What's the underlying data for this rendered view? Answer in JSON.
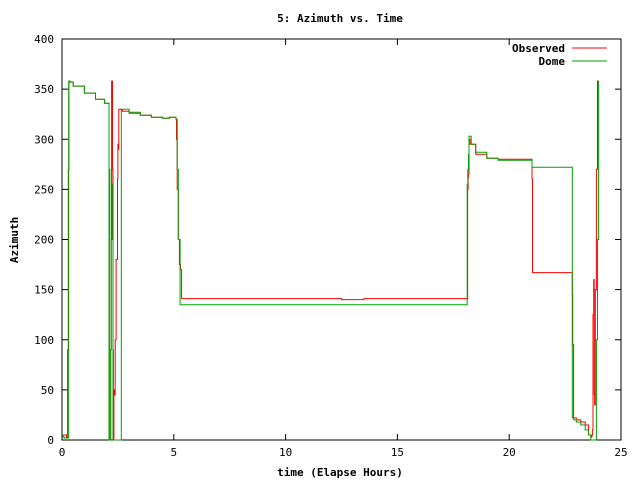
{
  "chart_data": {
    "type": "line",
    "title": "5: Azimuth vs. Time",
    "xlabel": "time (Elapse Hours)",
    "ylabel": "Azimuth",
    "xlim": [
      0,
      25
    ],
    "ylim": [
      0,
      400
    ],
    "xticks": [
      0,
      5,
      10,
      15,
      20,
      25
    ],
    "yticks": [
      0,
      50,
      100,
      150,
      200,
      250,
      300,
      350,
      400
    ],
    "grid": false,
    "legend": "top-right",
    "series": [
      {
        "name": "Observed",
        "color": "#ff0000",
        "x": [
          0,
          0.2,
          0.22,
          0.25,
          0.28,
          0.31,
          0.35,
          0.5,
          1.0,
          1.5,
          1.9,
          2.08,
          2.1,
          2.12,
          2.15,
          2.18,
          2.2,
          2.22,
          2.24,
          2.26,
          2.28,
          2.3,
          2.32,
          2.35,
          2.38,
          2.42,
          2.45,
          2.48,
          2.5,
          2.52,
          2.54,
          2.57,
          2.62,
          2.66,
          2.7,
          3.0,
          3.5,
          4.0,
          4.5,
          4.8,
          5.0,
          5.1,
          5.12,
          5.15,
          5.2,
          5.25,
          5.3,
          5.35,
          8.0,
          12.0,
          12.5,
          13.0,
          13.5,
          18.1,
          18.14,
          18.16,
          18.18,
          18.2,
          18.25,
          18.5,
          19.0,
          19.5,
          20.0,
          20.6,
          21.0,
          21.02,
          21.04,
          21.1,
          22.0,
          22.8,
          22.82,
          22.84,
          22.88,
          23.0,
          23.2,
          23.4,
          23.55,
          23.6,
          23.65,
          23.7,
          23.72,
          23.75,
          23.78,
          23.8,
          23.82,
          23.85,
          23.9,
          23.95,
          24.0
        ],
        "y": [
          5,
          2,
          2,
          90,
          270,
          358,
          357,
          353,
          346,
          340,
          336,
          336,
          270,
          0,
          0,
          90,
          200,
          358,
          358,
          270,
          90,
          0,
          50,
          45,
          100,
          180,
          180,
          260,
          295,
          290,
          330,
          330,
          330,
          329,
          328,
          326,
          324,
          322,
          321,
          322,
          322,
          320,
          300,
          250,
          200,
          175,
          170,
          141,
          141,
          141,
          140,
          140,
          141,
          141,
          250,
          262,
          265,
          300,
          295,
          285,
          281,
          280,
          280,
          280,
          280,
          260,
          167,
          167,
          167,
          167,
          145,
          95,
          22,
          20,
          18,
          15,
          5,
          5,
          3,
          5,
          10,
          125,
          160,
          45,
          35,
          150,
          270,
          358,
          357
        ]
      },
      {
        "name": "Dome",
        "color": "#00a000",
        "x": [
          0,
          0.05,
          0.1,
          0.15,
          0.2,
          0.28,
          0.3,
          0.33,
          0.35,
          0.5,
          1.0,
          1.5,
          1.9,
          2.08,
          2.1,
          2.12,
          2.15,
          2.18,
          2.2,
          2.22,
          2.25,
          2.28,
          2.3,
          2.35,
          2.4,
          2.6,
          2.65,
          2.7,
          2.75,
          3.0,
          3.5,
          4.0,
          4.5,
          4.8,
          5.0,
          5.1,
          5.15,
          5.2,
          5.28,
          5.3,
          5.35,
          8.0,
          12.0,
          13.0,
          15.0,
          18.1,
          18.12,
          18.15,
          18.18,
          18.2,
          18.3,
          18.5,
          19.0,
          19.5,
          20.0,
          20.6,
          21.0,
          21.02,
          21.05,
          22.0,
          22.8,
          22.82,
          22.84,
          22.88,
          23.0,
          23.2,
          23.4,
          23.55,
          23.65,
          23.75,
          23.8,
          23.85,
          23.9,
          23.95,
          24.0
        ],
        "y": [
          5,
          3,
          2,
          2,
          2,
          2,
          358,
          358,
          357,
          353,
          346,
          340,
          336,
          336,
          0,
          0,
          0,
          90,
          270,
          255,
          200,
          0,
          0,
          0,
          0,
          0,
          330,
          330,
          330,
          327,
          324,
          322,
          321,
          322,
          322,
          320,
          270,
          200,
          135,
          135,
          135,
          135,
          135,
          135,
          135,
          135,
          255,
          270,
          285,
          303,
          295,
          287,
          281,
          279,
          279,
          279,
          279,
          272,
          272,
          272,
          272,
          22,
          22,
          20,
          18,
          15,
          10,
          5,
          0,
          0,
          0,
          0,
          100,
          200,
          358
        ]
      }
    ]
  }
}
